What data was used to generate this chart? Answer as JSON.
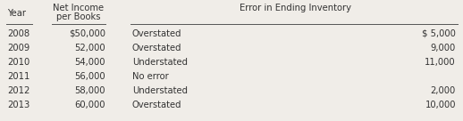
{
  "header1": "Year",
  "header2_line1": "Net Income",
  "header2_line2": "per Books",
  "header3": "Error in Ending Inventory",
  "rows": [
    {
      "year": "2008",
      "net_income": "$50,000",
      "error_type": "Overstated",
      "amount": "$ 5,000"
    },
    {
      "year": "2009",
      "net_income": "52,000",
      "error_type": "Overstated",
      "amount": "9,000"
    },
    {
      "year": "2010",
      "net_income": "54,000",
      "error_type": "Understated",
      "amount": "11,000"
    },
    {
      "year": "2011",
      "net_income": "56,000",
      "error_type": "No error",
      "amount": ""
    },
    {
      "year": "2012",
      "net_income": "58,000",
      "error_type": "Understated",
      "amount": "2,000"
    },
    {
      "year": "2013",
      "net_income": "60,000",
      "error_type": "Overstated",
      "amount": "10,000"
    }
  ],
  "bg_color": "#f0ede8",
  "font_size": 7.2,
  "line_color": "#555555",
  "text_color": "#333333"
}
